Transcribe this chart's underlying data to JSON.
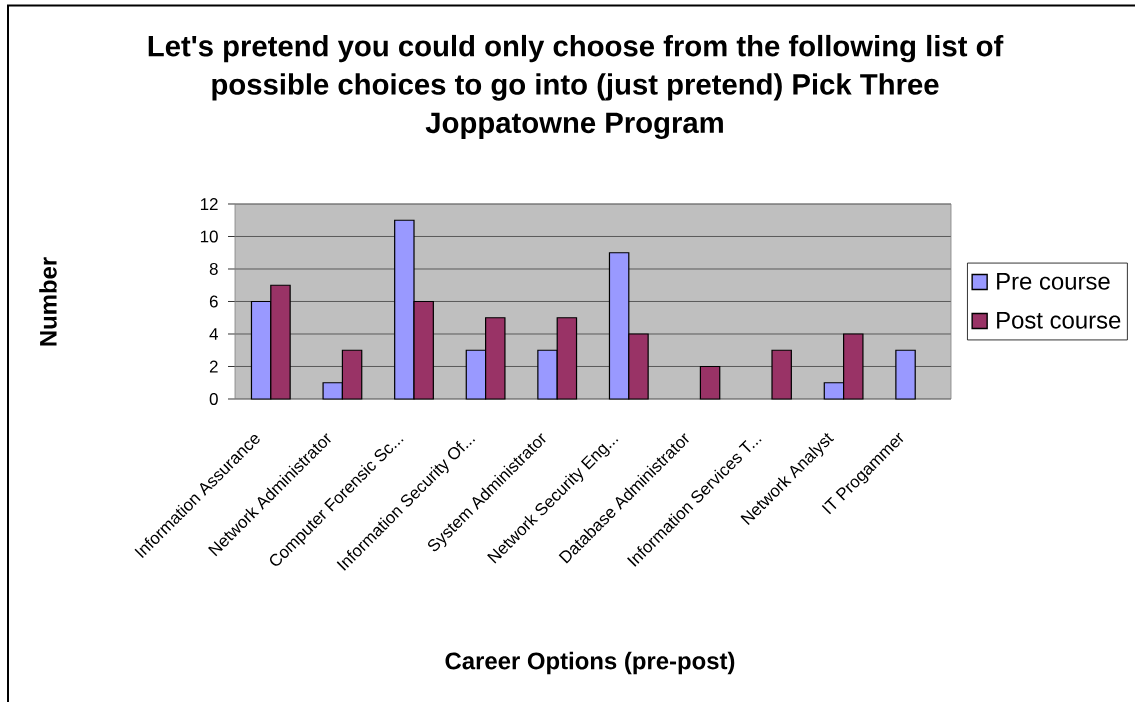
{
  "chart_data": {
    "type": "bar",
    "title": "Let's pretend you could only choose from the following list of possible choices to go into (just pretend) Pick Three Joppatowne Program",
    "xlabel": "Career Options (pre-post)",
    "ylabel": "Number",
    "categories": [
      "Information Assurance",
      "Network Administrator",
      "Computer Forensic Sc...",
      "Information Security Of...",
      "System Administrator",
      "Network Security Eng...",
      "Database Administrator",
      "Information Services T...",
      "Network Analyst",
      "IT Progammer"
    ],
    "series": [
      {
        "name": "Pre course",
        "color": "#9999ff",
        "values": [
          6,
          1,
          11,
          3,
          3,
          9,
          null,
          null,
          1,
          3
        ]
      },
      {
        "name": "Post course",
        "color": "#993366",
        "values": [
          7,
          3,
          6,
          5,
          5,
          4,
          2,
          3,
          4,
          null
        ]
      }
    ],
    "ylim": [
      0,
      12
    ],
    "yticks": [
      0,
      2,
      4,
      6,
      8,
      10,
      12
    ],
    "grid": "y",
    "legend": "right"
  }
}
